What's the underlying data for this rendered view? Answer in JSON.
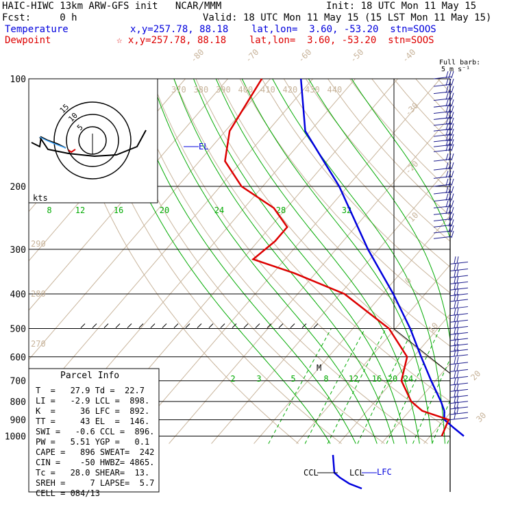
{
  "header": {
    "model_line": "HAIC-HIWC 13km ARW-GFS init   NCAR/MMM",
    "init_line": "Init: 18 UTC Mon 11 May 15",
    "fcst_line": "Fcst:     0 h",
    "valid_line": "Valid: 18 UTC Mon 11 May 15 (15 LST Mon 11 May 15)",
    "temp_label": "Temperature",
    "temp_loc": "x,y=257.78, 88.18    lat,lon=  3.60, -53.20  stn=SOOS",
    "dew_label": "Dewpoint",
    "dew_loc": "☆ x,y=257.78, 88.18    lat,lon=  3.60, -53.20  stn=SOOS",
    "barb_key": "Full barb:",
    "barb_unit": "5 m s⁻¹"
  },
  "colors": {
    "temperature": "#0000dd",
    "dewpoint": "#dd0000",
    "isotherm": "#c8b49b",
    "mixing": "#00aa00",
    "frame": "#000000"
  },
  "hodograph": {
    "rings": [
      "5",
      "10",
      "15"
    ],
    "units": "kts"
  },
  "parcel_info": {
    "title": "Parcel Info",
    "rows": [
      "T  =   27.9 Td =  22.7",
      "LI =   -2.9 LCL =  898.",
      "K  =     36 LFC =  892.",
      "TT =     43 EL  =  146.",
      "SWI =   -0.6 CCL =  896.",
      "PW =   5.51 YGP =   0.1",
      "CAPE =   896 SWEAT=  242",
      "CIN =    -50 HWBZ= 4865.",
      "Tc =   28.0 SHEAR=  13.",
      "SREH =     7 LAPSE=  5.7",
      "CELL = 084/13"
    ]
  },
  "chart_data": {
    "type": "line",
    "pressure_levels": [
      100,
      200,
      300,
      400,
      500,
      600,
      700,
      800,
      900,
      1000
    ],
    "isotherm_labels": [
      "-80",
      "-70",
      "-60",
      "-50",
      "-40",
      "-30",
      "-20",
      "-10",
      "0",
      "10",
      "20",
      "30",
      "40"
    ],
    "theta_labels": [
      "370",
      "380",
      "390",
      "400",
      "410",
      "420",
      "430",
      "440"
    ],
    "theta_left_labels": [
      "290",
      "280",
      "270"
    ],
    "mixing_ratio_upper": [
      "8",
      "12",
      "16",
      "20",
      "24",
      "28",
      "32"
    ],
    "mixing_ratio_lower": [
      "2",
      "3",
      "5",
      "8",
      "12",
      "16",
      "20",
      "24"
    ],
    "level_labels": {
      "el": "EL",
      "lfc": "LFC",
      "lcl": "LCL",
      "ccl": "CCL",
      "melt": "M"
    },
    "series": [
      {
        "name": "Temperature",
        "points": [
          [
            100,
            -82.8
          ],
          [
            140,
            -71.2
          ],
          [
            200,
            -52.0
          ],
          [
            300,
            -32.5
          ],
          [
            400,
            -17.5
          ],
          [
            500,
            -6.5
          ],
          [
            600,
            1.8
          ],
          [
            700,
            9.0
          ],
          [
            800,
            15.5
          ],
          [
            850,
            18.2
          ],
          [
            900,
            20.0
          ],
          [
            950,
            24.0
          ],
          [
            1000,
            27.9
          ]
        ]
      },
      {
        "name": "Dewpoint",
        "points": [
          [
            100,
            -92.0
          ],
          [
            140,
            -89.0
          ],
          [
            170,
            -84.0
          ],
          [
            200,
            -75.0
          ],
          [
            230,
            -63.0
          ],
          [
            260,
            -56.0
          ],
          [
            285,
            -56.0
          ],
          [
            320,
            -57.5
          ],
          [
            350,
            -45.0
          ],
          [
            400,
            -29.0
          ],
          [
            500,
            -11.5
          ],
          [
            600,
            -1.5
          ],
          [
            700,
            2.0
          ],
          [
            800,
            8.5
          ],
          [
            850,
            13.0
          ],
          [
            900,
            21.0
          ],
          [
            1000,
            22.7
          ]
        ]
      }
    ],
    "wind_barbs_ms": [
      [
        100,
        15
      ],
      [
        105,
        15
      ],
      [
        110,
        15
      ],
      [
        115,
        15
      ],
      [
        120,
        15
      ],
      [
        125,
        15
      ],
      [
        130,
        15
      ],
      [
        135,
        15
      ],
      [
        140,
        15
      ],
      [
        145,
        15
      ],
      [
        150,
        15
      ],
      [
        155,
        15
      ],
      [
        160,
        15
      ],
      [
        170,
        15
      ],
      [
        180,
        15
      ],
      [
        190,
        15
      ],
      [
        200,
        15
      ],
      [
        210,
        15
      ],
      [
        220,
        15
      ],
      [
        230,
        15
      ],
      [
        240,
        15
      ],
      [
        250,
        10
      ],
      [
        260,
        10
      ],
      [
        270,
        10
      ],
      [
        280,
        5
      ],
      [
        330,
        10
      ],
      [
        345,
        10
      ],
      [
        360,
        10
      ],
      [
        375,
        10
      ],
      [
        390,
        10
      ],
      [
        405,
        10
      ],
      [
        420,
        10
      ],
      [
        440,
        10
      ],
      [
        460,
        10
      ],
      [
        480,
        10
      ],
      [
        500,
        10
      ],
      [
        520,
        10
      ],
      [
        540,
        10
      ],
      [
        560,
        10
      ],
      [
        580,
        10
      ],
      [
        600,
        10
      ],
      [
        630,
        10
      ],
      [
        660,
        10
      ],
      [
        690,
        10
      ],
      [
        720,
        10
      ],
      [
        750,
        10
      ],
      [
        780,
        10
      ],
      [
        810,
        10
      ],
      [
        840,
        10
      ],
      [
        870,
        10
      ],
      [
        900,
        5
      ]
    ]
  }
}
